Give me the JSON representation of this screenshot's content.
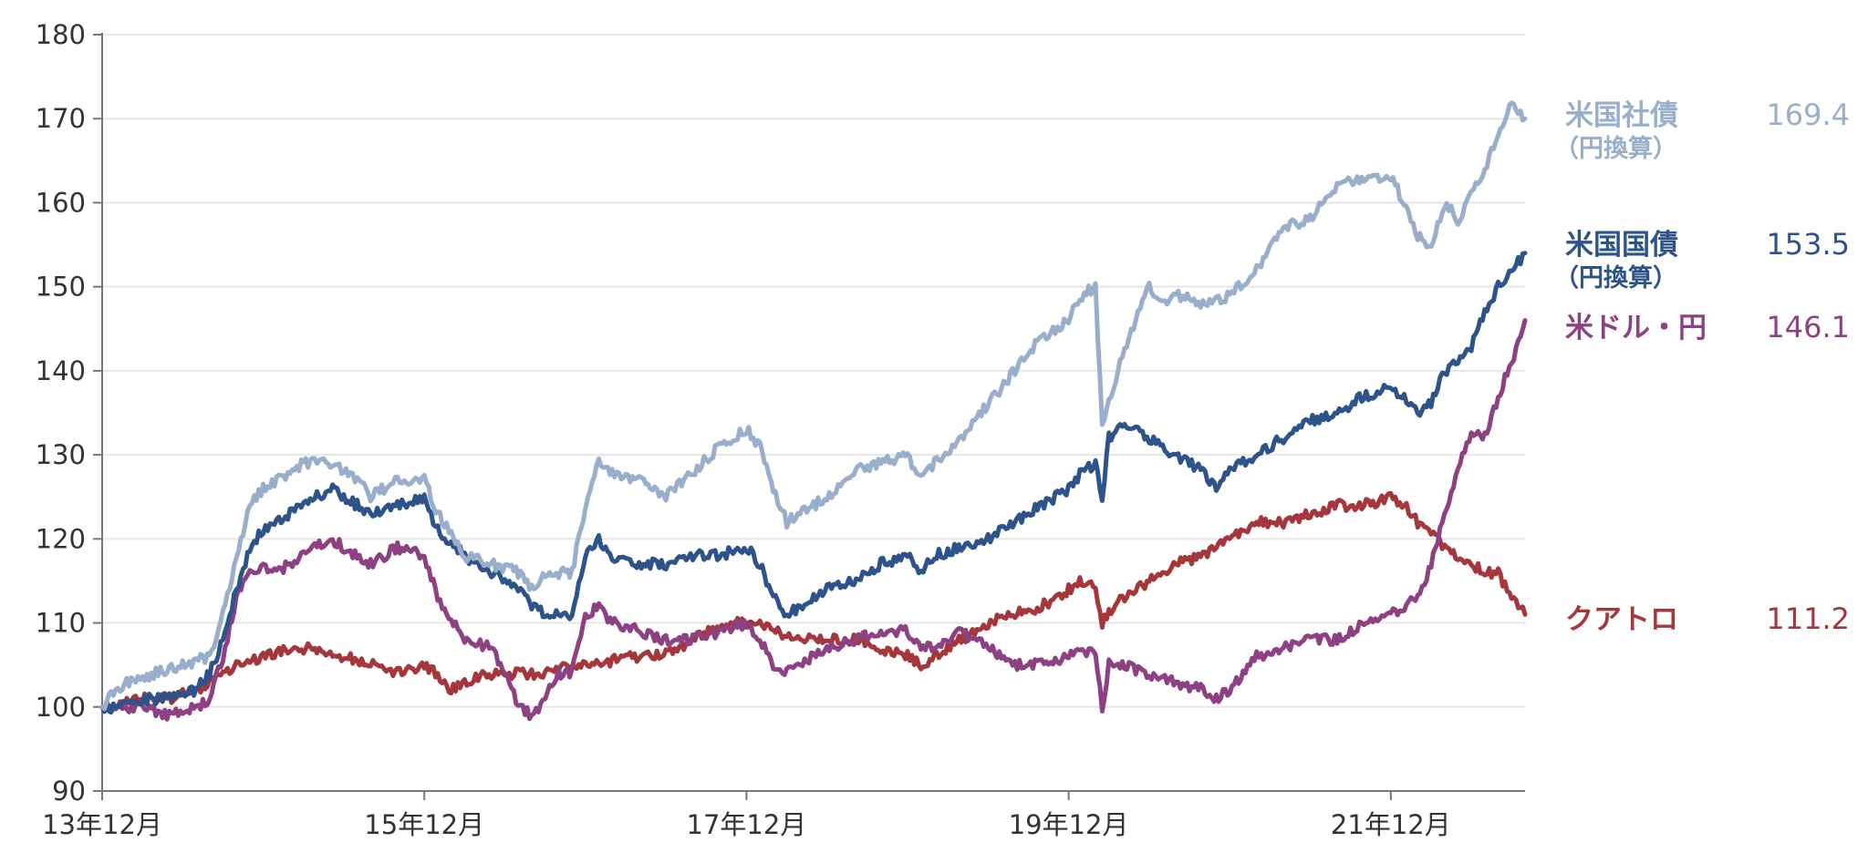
{
  "chart_data": {
    "type": "line",
    "title": "",
    "xlabel": "",
    "ylabel": "",
    "ylim": [
      90,
      180
    ],
    "yticks": [
      90,
      100,
      110,
      120,
      130,
      140,
      150,
      160,
      170,
      180
    ],
    "xlim": [
      0,
      106
    ],
    "xticks": [
      {
        "x": 0,
        "label": "13年12月"
      },
      {
        "x": 24,
        "label": "15年12月"
      },
      {
        "x": 48,
        "label": "17年12月"
      },
      {
        "x": 72,
        "label": "19年12月"
      },
      {
        "x": 96,
        "label": "21年12月"
      }
    ],
    "grid": "horizontal",
    "series": [
      {
        "name": "米国社債",
        "sub": "（円換算）",
        "end_label": "169.4",
        "color": "#98AECA",
        "points": [
          [
            0,
            100
          ],
          [
            1,
            102
          ],
          [
            2,
            103
          ],
          [
            4,
            104
          ],
          [
            6,
            105
          ],
          [
            8,
            106
          ],
          [
            9,
            111
          ],
          [
            10,
            118
          ],
          [
            11,
            124
          ],
          [
            12,
            126
          ],
          [
            13,
            127
          ],
          [
            15,
            129
          ],
          [
            17,
            129
          ],
          [
            18,
            128
          ],
          [
            19,
            127
          ],
          [
            20,
            125
          ],
          [
            22,
            127
          ],
          [
            24,
            127
          ],
          [
            25,
            123
          ],
          [
            27,
            118
          ],
          [
            29,
            117
          ],
          [
            31,
            116
          ],
          [
            32,
            114
          ],
          [
            33,
            116
          ],
          [
            35,
            116
          ],
          [
            36,
            124
          ],
          [
            37,
            129
          ],
          [
            38,
            128
          ],
          [
            40,
            127
          ],
          [
            42,
            125
          ],
          [
            44,
            128
          ],
          [
            46,
            131
          ],
          [
            48,
            133
          ],
          [
            49,
            131
          ],
          [
            50,
            126
          ],
          [
            51,
            122
          ],
          [
            52,
            123
          ],
          [
            54,
            125
          ],
          [
            56,
            128
          ],
          [
            58,
            129
          ],
          [
            60,
            130
          ],
          [
            61,
            127
          ],
          [
            62,
            129
          ],
          [
            64,
            132
          ],
          [
            66,
            136
          ],
          [
            68,
            140
          ],
          [
            70,
            144
          ],
          [
            72,
            146
          ],
          [
            73,
            149
          ],
          [
            74,
            150
          ],
          [
            74.5,
            134
          ],
          [
            75,
            136
          ],
          [
            76,
            142
          ],
          [
            78,
            150
          ],
          [
            79,
            148
          ],
          [
            80,
            149
          ],
          [
            82,
            148
          ],
          [
            84,
            149
          ],
          [
            86,
            152
          ],
          [
            88,
            157
          ],
          [
            90,
            158
          ],
          [
            92,
            162
          ],
          [
            94,
            163
          ],
          [
            96,
            163
          ],
          [
            97,
            160
          ],
          [
            98,
            156
          ],
          [
            99,
            155
          ],
          [
            100,
            160
          ],
          [
            101,
            158
          ],
          [
            102,
            161
          ],
          [
            103,
            164
          ],
          [
            104,
            168
          ],
          [
            105,
            172
          ],
          [
            106,
            170
          ]
        ]
      },
      {
        "name": "米国国債",
        "sub": "（円換算）",
        "end_label": "153.5",
        "color": "#2D548A",
        "points": [
          [
            0,
            100
          ],
          [
            1,
            100
          ],
          [
            3,
            101
          ],
          [
            5,
            101
          ],
          [
            7,
            102
          ],
          [
            8,
            104
          ],
          [
            9,
            108
          ],
          [
            10,
            114
          ],
          [
            11,
            119
          ],
          [
            12,
            121
          ],
          [
            13,
            122
          ],
          [
            15,
            124
          ],
          [
            17,
            126
          ],
          [
            18,
            125
          ],
          [
            19,
            124
          ],
          [
            20,
            123
          ],
          [
            22,
            124
          ],
          [
            24,
            125
          ],
          [
            25,
            121
          ],
          [
            27,
            118
          ],
          [
            29,
            116
          ],
          [
            31,
            114
          ],
          [
            32,
            112
          ],
          [
            33,
            111
          ],
          [
            35,
            111
          ],
          [
            36,
            118
          ],
          [
            37,
            120
          ],
          [
            38,
            118
          ],
          [
            40,
            117
          ],
          [
            42,
            117
          ],
          [
            44,
            118
          ],
          [
            46,
            118
          ],
          [
            48,
            119
          ],
          [
            49,
            117
          ],
          [
            50,
            113
          ],
          [
            51,
            111
          ],
          [
            52,
            112
          ],
          [
            54,
            114
          ],
          [
            56,
            115
          ],
          [
            58,
            117
          ],
          [
            60,
            118
          ],
          [
            61,
            116
          ],
          [
            62,
            118
          ],
          [
            64,
            119
          ],
          [
            66,
            120
          ],
          [
            68,
            122
          ],
          [
            70,
            124
          ],
          [
            72,
            126
          ],
          [
            73,
            128
          ],
          [
            74,
            129
          ],
          [
            74.5,
            125
          ],
          [
            75,
            132
          ],
          [
            76,
            134
          ],
          [
            78,
            132
          ],
          [
            80,
            130
          ],
          [
            82,
            128
          ],
          [
            83,
            126
          ],
          [
            84,
            128
          ],
          [
            86,
            130
          ],
          [
            88,
            132
          ],
          [
            90,
            134
          ],
          [
            92,
            135
          ],
          [
            94,
            137
          ],
          [
            96,
            138
          ],
          [
            97,
            137
          ],
          [
            98,
            135
          ],
          [
            99,
            136
          ],
          [
            100,
            140
          ],
          [
            101,
            141
          ],
          [
            102,
            143
          ],
          [
            103,
            147
          ],
          [
            104,
            150
          ],
          [
            105,
            152
          ],
          [
            106,
            154
          ]
        ]
      },
      {
        "name": "米ドル・円",
        "sub": "",
        "end_label": "146.1",
        "color": "#8E4182",
        "points": [
          [
            0,
            100
          ],
          [
            1,
            100
          ],
          [
            3,
            100
          ],
          [
            5,
            99
          ],
          [
            7,
            100
          ],
          [
            8,
            101
          ],
          [
            9,
            106
          ],
          [
            10,
            113
          ],
          [
            11,
            116
          ],
          [
            12,
            117
          ],
          [
            13,
            116
          ],
          [
            15,
            118
          ],
          [
            17,
            120
          ],
          [
            18,
            119
          ],
          [
            19,
            118
          ],
          [
            20,
            117
          ],
          [
            22,
            119
          ],
          [
            24,
            118
          ],
          [
            25,
            113
          ],
          [
            27,
            108
          ],
          [
            29,
            107
          ],
          [
            30,
            104
          ],
          [
            31,
            100
          ],
          [
            32,
            99
          ],
          [
            33,
            101
          ],
          [
            34,
            104
          ],
          [
            35,
            104
          ],
          [
            36,
            111
          ],
          [
            37,
            112
          ],
          [
            38,
            110
          ],
          [
            40,
            109
          ],
          [
            42,
            108
          ],
          [
            44,
            108
          ],
          [
            46,
            109
          ],
          [
            48,
            110
          ],
          [
            49,
            108
          ],
          [
            50,
            105
          ],
          [
            51,
            104
          ],
          [
            52,
            105
          ],
          [
            54,
            107
          ],
          [
            56,
            108
          ],
          [
            58,
            109
          ],
          [
            60,
            109
          ],
          [
            61,
            107
          ],
          [
            62,
            107
          ],
          [
            64,
            109
          ],
          [
            66,
            107
          ],
          [
            68,
            105
          ],
          [
            70,
            105
          ],
          [
            72,
            106
          ],
          [
            73,
            107
          ],
          [
            74,
            106
          ],
          [
            74.5,
            100
          ],
          [
            75,
            105
          ],
          [
            76,
            105
          ],
          [
            78,
            104
          ],
          [
            80,
            103
          ],
          [
            82,
            102
          ],
          [
            83,
            101
          ],
          [
            84,
            102
          ],
          [
            86,
            106
          ],
          [
            88,
            107
          ],
          [
            90,
            108
          ],
          [
            92,
            108
          ],
          [
            94,
            110
          ],
          [
            96,
            111
          ],
          [
            97,
            112
          ],
          [
            98,
            113
          ],
          [
            99,
            117
          ],
          [
            100,
            123
          ],
          [
            101,
            128
          ],
          [
            102,
            133
          ],
          [
            103,
            132
          ],
          [
            104,
            137
          ],
          [
            105,
            141
          ],
          [
            106,
            146
          ]
        ]
      },
      {
        "name": "クアトロ",
        "sub": "",
        "end_label": "111.2",
        "color": "#A5363C",
        "points": [
          [
            0,
            100
          ],
          [
            1,
            100
          ],
          [
            3,
            101
          ],
          [
            5,
            101
          ],
          [
            7,
            102
          ],
          [
            8,
            103
          ],
          [
            9,
            104
          ],
          [
            10,
            105
          ],
          [
            12,
            106
          ],
          [
            14,
            107
          ],
          [
            16,
            107
          ],
          [
            18,
            106
          ],
          [
            20,
            105
          ],
          [
            22,
            104
          ],
          [
            24,
            105
          ],
          [
            25,
            104
          ],
          [
            26,
            102
          ],
          [
            27,
            103
          ],
          [
            29,
            104
          ],
          [
            31,
            104
          ],
          [
            33,
            104
          ],
          [
            35,
            105
          ],
          [
            37,
            105
          ],
          [
            39,
            106
          ],
          [
            41,
            106
          ],
          [
            43,
            107
          ],
          [
            45,
            109
          ],
          [
            47,
            110
          ],
          [
            48,
            110
          ],
          [
            49,
            110
          ],
          [
            50,
            109
          ],
          [
            52,
            108
          ],
          [
            54,
            108
          ],
          [
            56,
            108
          ],
          [
            58,
            107
          ],
          [
            60,
            106
          ],
          [
            61,
            105
          ],
          [
            62,
            106
          ],
          [
            64,
            108
          ],
          [
            66,
            110
          ],
          [
            68,
            111
          ],
          [
            70,
            112
          ],
          [
            72,
            114
          ],
          [
            73,
            115
          ],
          [
            74,
            114
          ],
          [
            74.5,
            110
          ],
          [
            75,
            111
          ],
          [
            76,
            113
          ],
          [
            78,
            115
          ],
          [
            80,
            117
          ],
          [
            82,
            118
          ],
          [
            84,
            120
          ],
          [
            86,
            122
          ],
          [
            88,
            122
          ],
          [
            90,
            123
          ],
          [
            92,
            124
          ],
          [
            94,
            124
          ],
          [
            96,
            125
          ],
          [
            97,
            124
          ],
          [
            98,
            122
          ],
          [
            99,
            121
          ],
          [
            100,
            119
          ],
          [
            101,
            118
          ],
          [
            102,
            117
          ],
          [
            103,
            116
          ],
          [
            104,
            116
          ],
          [
            105,
            113
          ],
          [
            106,
            111
          ]
        ]
      }
    ]
  }
}
